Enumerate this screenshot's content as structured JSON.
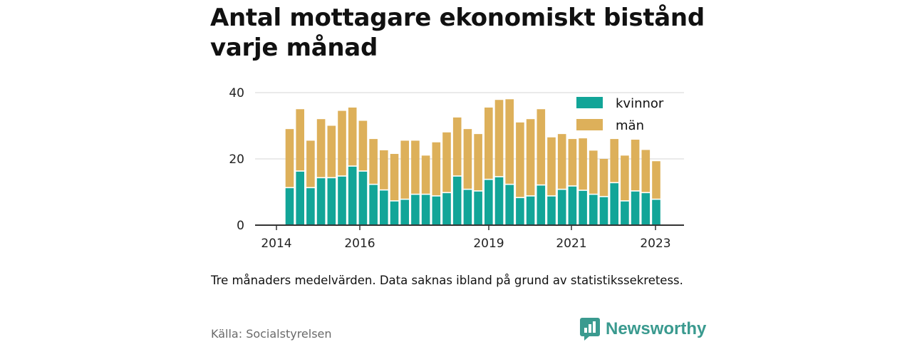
{
  "title": "Antal mottagare ekonomiskt bistånd varje månad",
  "note": "Tre månaders medelvärden. Data saknas ibland på grund av statistikssekretess.",
  "source": "Källa: Socialstyrelsen",
  "brand": "Newsworthy",
  "colors": {
    "kvinnor": "#12a598",
    "man": "#ddb05a",
    "grid": "#dddddd",
    "axis": "#333333"
  },
  "chart_data": {
    "type": "bar",
    "stacked": true,
    "ylim": [
      0,
      40
    ],
    "yticks": [
      0,
      20,
      40
    ],
    "grid": true,
    "legend_position": "top-right",
    "x_tick_labels": [
      "2014",
      "2016",
      "2019",
      "2021",
      "2023"
    ],
    "series": [
      {
        "name": "kvinnor",
        "values": [
          11.5,
          16.5,
          11.5,
          14.5,
          14.5,
          15.0,
          18.0,
          16.5,
          12.5,
          10.8,
          7.5,
          8.0,
          9.5,
          9.5,
          9.0,
          10.0,
          15.0,
          11.0,
          10.5,
          14.0,
          14.8,
          12.5,
          8.5,
          9.0,
          12.3,
          9.0,
          11.0,
          12.0,
          10.7,
          9.5,
          8.8,
          13.0,
          7.5,
          10.5,
          10.0,
          8.0
        ]
      },
      {
        "name": "män",
        "values": [
          17.5,
          18.5,
          14.0,
          17.5,
          15.5,
          19.5,
          17.5,
          15.0,
          13.5,
          11.8,
          14.0,
          17.5,
          16.0,
          11.5,
          16.0,
          18.0,
          17.5,
          18.0,
          17.0,
          21.5,
          23.0,
          25.5,
          22.5,
          23.0,
          22.7,
          17.5,
          16.5,
          14.0,
          15.5,
          13.0,
          11.2,
          13.0,
          13.5,
          15.3,
          12.7,
          11.3
        ]
      }
    ]
  }
}
